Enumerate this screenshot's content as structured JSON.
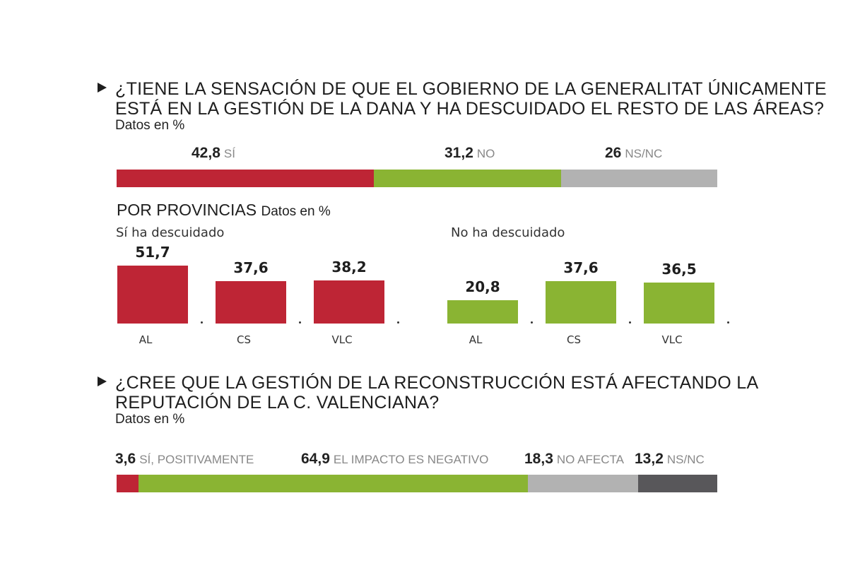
{
  "chart_data": [
    {
      "type": "bar",
      "subtype": "stacked-horizontal",
      "title": "¿TIENE LA SENSACIÓN DE QUE EL GOBIERNO DE LA GENERALITAT ÚNICAMENTE ESTÁ EN LA GESTIÓN DE LA DANA Y HA DESCUIDADO EL RESTO DE LAS ÁREAS?",
      "title_lines": [
        "¿TIENE LA SENSACIÓN DE QUE EL GOBIERNO DE LA GENERALITAT ÚNICAMENTE",
        "ESTÁ EN LA GESTIÓN DE LA DANA Y HA DESCUIDADO EL RESTO DE LAS ÁREAS?"
      ],
      "subtitle": "Datos en %",
      "segments": [
        {
          "label": "SÍ",
          "value": 42.8,
          "display": "42,8",
          "color": "#be2535"
        },
        {
          "label": "NO",
          "value": 31.2,
          "display": "31,2",
          "color": "#8ab433"
        },
        {
          "label": "NS/NC",
          "value": 26,
          "display": "26",
          "color": "#b2b2b2"
        }
      ]
    },
    {
      "type": "bar",
      "title": "POR PROVINCIAS",
      "subtitle": "Datos en %",
      "categories": [
        "AL",
        "CS",
        "VLC"
      ],
      "series": [
        {
          "name": "Sí ha descuidado",
          "values": [
            51.7,
            37.6,
            38.2
          ],
          "display": [
            "51,7",
            "37,6",
            "38,2"
          ],
          "color": "#be2535"
        },
        {
          "name": "No ha descuidado",
          "values": [
            20.8,
            37.6,
            36.5
          ],
          "display": [
            "20,8",
            "37,6",
            "36,5"
          ],
          "color": "#8ab433"
        }
      ],
      "ylim": [
        0,
        60
      ]
    },
    {
      "type": "bar",
      "subtype": "stacked-horizontal",
      "title": "¿CREE QUE LA GESTIÓN DE LA RECONSTRUCCIÓN ESTÁ AFECTANDO LA REPUTACIÓN DE LA C. VALENCIANA?",
      "title_lines": [
        "¿CREE QUE LA GESTIÓN DE LA RECONSTRUCCIÓN ESTÁ AFECTANDO LA",
        "REPUTACIÓN DE LA C. VALENCIANA?"
      ],
      "subtitle": "Datos en %",
      "segments": [
        {
          "label": "SÍ, POSITIVAMENTE",
          "value": 3.6,
          "display": "3,6",
          "color": "#be2535"
        },
        {
          "label": "EL IMPACTO ES NEGATIVO",
          "value": 64.9,
          "display": "64,9",
          "color": "#8ab433"
        },
        {
          "label": "NO AFECTA",
          "value": 18.3,
          "display": "18,3",
          "color": "#b2b2b2"
        },
        {
          "label": "NS/NC",
          "value": 13.2,
          "display": "13,2",
          "color": "#58575a"
        }
      ]
    }
  ]
}
